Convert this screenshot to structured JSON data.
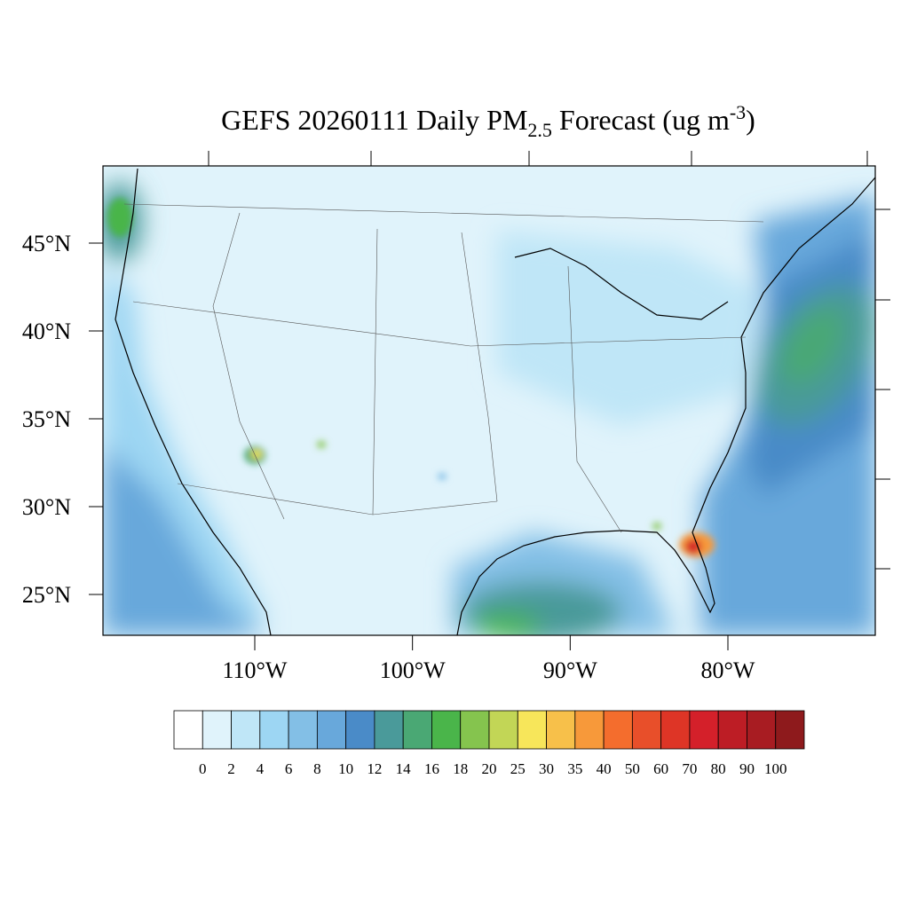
{
  "title": {
    "main": "GEFS 20260111 Daily PM",
    "sub": "2.5",
    "mid": " Forecast (ug m",
    "sup": "-3",
    "end": ")"
  },
  "map": {
    "lat_ticks": [
      {
        "value": 45,
        "label": "45°N"
      },
      {
        "value": 40,
        "label": "40°N"
      },
      {
        "value": 35,
        "label": "35°N"
      },
      {
        "value": 30,
        "label": "30°N"
      },
      {
        "value": 25,
        "label": "25°N"
      }
    ],
    "lon_ticks": [
      {
        "value": -110,
        "label": "110°W"
      },
      {
        "value": -100,
        "label": "100°W"
      },
      {
        "value": -90,
        "label": "90°W"
      },
      {
        "value": -80,
        "label": "80°W"
      }
    ]
  },
  "colorbar": {
    "levels": [
      0,
      2,
      4,
      6,
      8,
      10,
      12,
      14,
      16,
      18,
      20,
      25,
      30,
      35,
      40,
      50,
      60,
      70,
      80,
      90,
      100
    ],
    "colors": [
      "#ffffff",
      "#e0f3fb",
      "#bfe6f7",
      "#9dd6f3",
      "#83bfe6",
      "#68a8db",
      "#4a8bc8",
      "#4a9a9a",
      "#4aa874",
      "#4ab54a",
      "#85c44e",
      "#c2d656",
      "#f7e65a",
      "#f7c04a",
      "#f7993a",
      "#f46d2d",
      "#e84f2a",
      "#de3526",
      "#d4202a",
      "#bd1d25",
      "#a81c22",
      "#8e1a1c"
    ]
  }
}
